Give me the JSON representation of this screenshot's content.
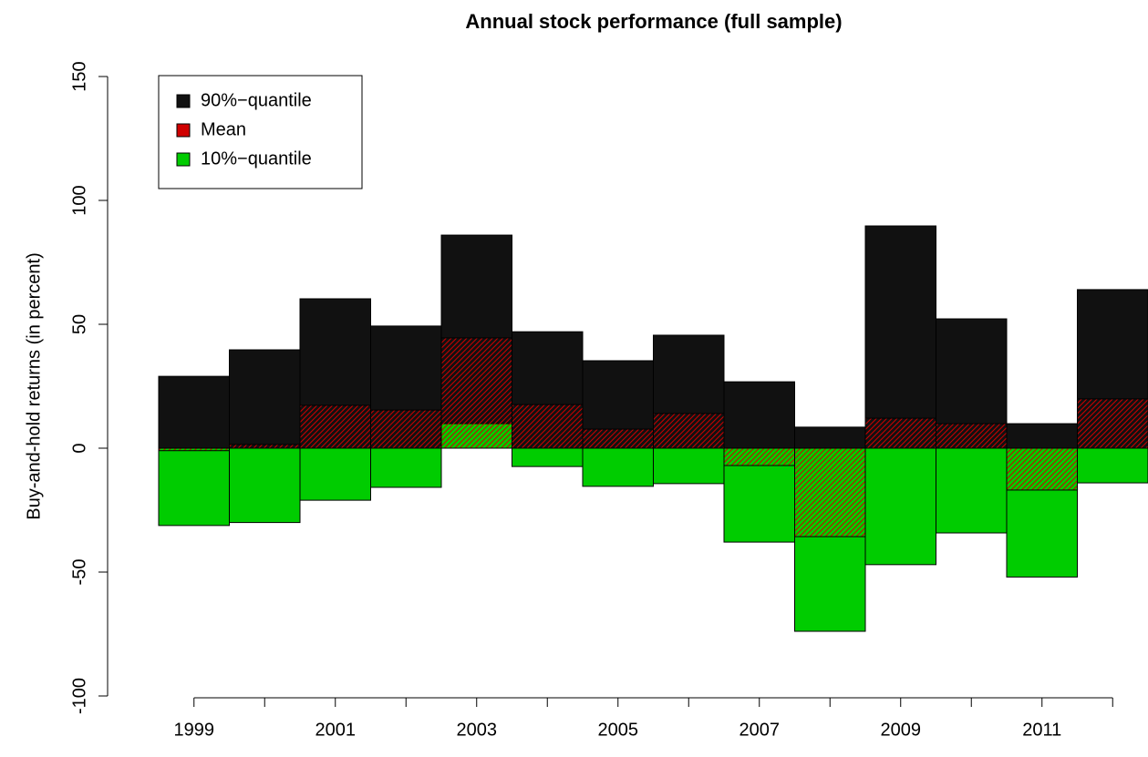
{
  "chart_data": {
    "type": "bar",
    "title": "Annual stock performance (full sample)",
    "y_label": "Buy-and-hold returns (in percent)",
    "categories": [
      "1999",
      null,
      "2001",
      null,
      "2003",
      null,
      "2005",
      null,
      "2007",
      null,
      "2009",
      null,
      "2011",
      null
    ],
    "series": [
      {
        "name": "90%−quantile",
        "color": "#111111",
        "values": [
          29,
          39.7,
          60.3,
          49.3,
          86,
          47,
          35.3,
          45.6,
          26.8,
          8.5,
          89.7,
          52.2,
          9.9,
          64
        ]
      },
      {
        "name": "Mean",
        "color": "#d00000",
        "hatched": true,
        "values": [
          -1,
          1.5,
          17.3,
          15.4,
          44.5,
          17.6,
          7.7,
          14,
          -7,
          -35.7,
          12.1,
          9.9,
          -16.9,
          19.9
        ]
      },
      {
        "name": "10%−quantile",
        "color": "#00cc00",
        "values": [
          -31.2,
          -30,
          -21,
          -15.8,
          9.9,
          -7.4,
          -15.4,
          -14.3,
          -37.9,
          -73.9,
          -47,
          -34.2,
          -52,
          -14
        ]
      }
    ],
    "ylim": [
      -100,
      150
    ],
    "yticks": [
      -100,
      -50,
      0,
      50,
      100,
      150
    ],
    "legend": "top-left"
  }
}
